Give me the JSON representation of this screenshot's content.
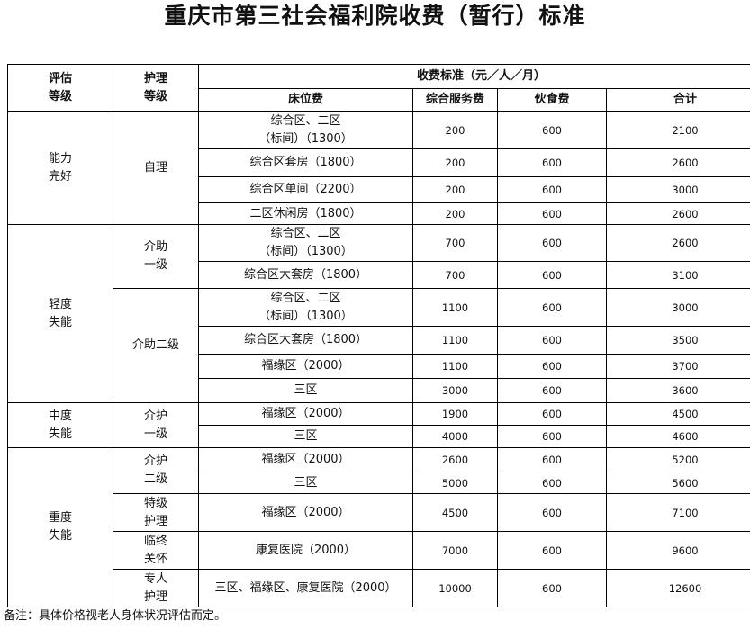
{
  "title": "重庆市第三社会福利院收费（暂行）标准",
  "header": {
    "grade": "评估\n等级",
    "care": "护理\n等级",
    "fee_group": "收费标准（元／人／月）",
    "bed": "床位费",
    "service": "综合服务费",
    "food": "伙食费",
    "total": "合计"
  },
  "grades": [
    {
      "label": "能力\n完好",
      "rows": 4
    },
    {
      "label": "轻度\n失能",
      "rows": 6
    },
    {
      "label": "中度\n失能",
      "rows": 2
    },
    {
      "label": "重度\n失能",
      "rows": 5
    }
  ],
  "care_levels": [
    {
      "label": "自理",
      "rows": 4
    },
    {
      "label": "介助\n一级",
      "rows": 2
    },
    {
      "label": "介助二级",
      "rows": 4
    },
    {
      "label": "介护\n一级",
      "rows": 2
    },
    {
      "label": "介护\n二级",
      "rows": 2
    },
    {
      "label": "特级\n护理",
      "rows": 1
    },
    {
      "label": "临终\n关怀",
      "rows": 1
    },
    {
      "label": "专人\n护理",
      "rows": 1
    }
  ],
  "rows": [
    {
      "bed": "综合区、二区\n（标间）（1300）",
      "service": "200",
      "food": "600",
      "total": "2100"
    },
    {
      "bed": "综合区套房（1800）",
      "service": "200",
      "food": "600",
      "total": "2600"
    },
    {
      "bed": "综合区单间（2200）",
      "service": "200",
      "food": "600",
      "total": "3000"
    },
    {
      "bed": "二区休闲房（1800）",
      "service": "200",
      "food": "600",
      "total": "2600"
    },
    {
      "bed": "综合区、二区\n（标间）（1300）",
      "service": "700",
      "food": "600",
      "total": "2600"
    },
    {
      "bed": "综合区大套房（1800）",
      "service": "700",
      "food": "600",
      "total": "3100"
    },
    {
      "bed": "综合区、二区\n（标间）（1300）",
      "service": "1100",
      "food": "600",
      "total": "3000"
    },
    {
      "bed": "综合区大套房（1800）",
      "service": "1100",
      "food": "600",
      "total": "3500"
    },
    {
      "bed": "福缘区（2000）",
      "service": "1100",
      "food": "600",
      "total": "3700"
    },
    {
      "bed": "三区",
      "service": "3000",
      "food": "600",
      "total": "3600"
    },
    {
      "bed": "福缘区（2000）",
      "service": "1900",
      "food": "600",
      "total": "4500"
    },
    {
      "bed": "三区",
      "service": "4000",
      "food": "600",
      "total": "4600"
    },
    {
      "bed": "福缘区（2000）",
      "service": "2600",
      "food": "600",
      "total": "5200"
    },
    {
      "bed": "三区",
      "service": "5000",
      "food": "600",
      "total": "5600"
    },
    {
      "bed": "福缘区（2000）",
      "service": "4500",
      "food": "600",
      "total": "7100"
    },
    {
      "bed": "康复医院（2000）",
      "service": "7000",
      "food": "600",
      "total": "9600"
    },
    {
      "bed": "三区、福缘区、康复医院（2000）",
      "service": "10000",
      "food": "600",
      "total": "12600"
    }
  ],
  "note": "备注：具体价格视老人身体状况评估而定。"
}
